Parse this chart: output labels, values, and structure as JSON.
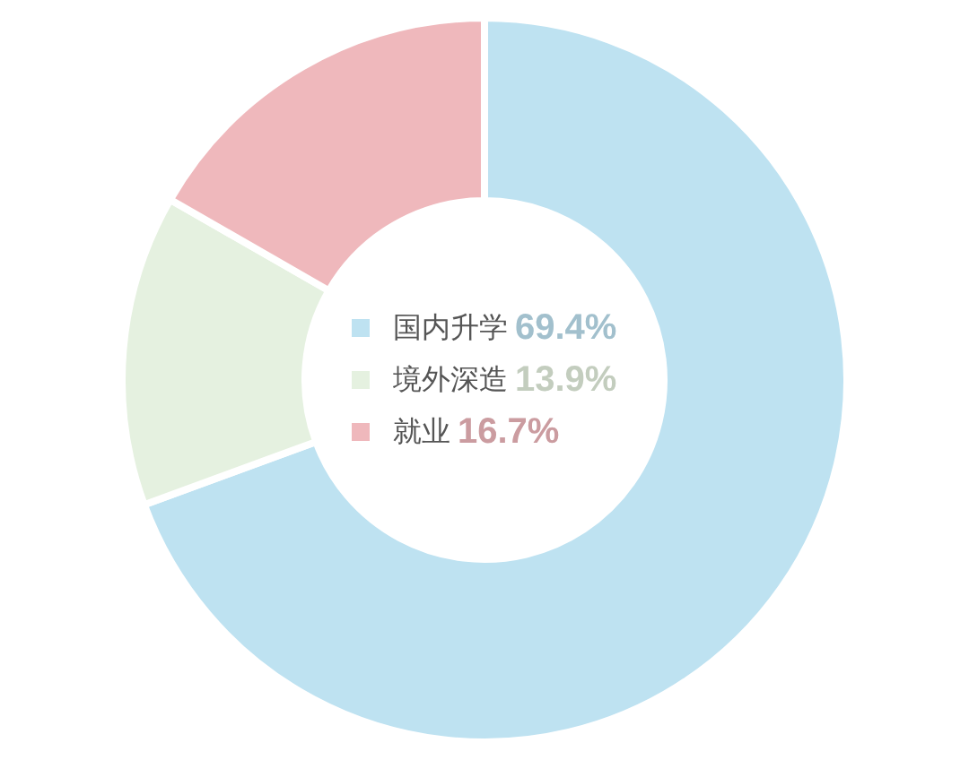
{
  "chart_data": {
    "type": "donut",
    "categories": [
      "国内升学",
      "境外深造",
      "就业"
    ],
    "values": [
      69.4,
      13.9,
      16.7
    ],
    "colors": [
      "#bee2f1",
      "#e5f1e0",
      "#efb8bc"
    ],
    "value_labels": [
      "69.4%",
      "13.9%",
      "16.7%"
    ],
    "legend": "center"
  }
}
